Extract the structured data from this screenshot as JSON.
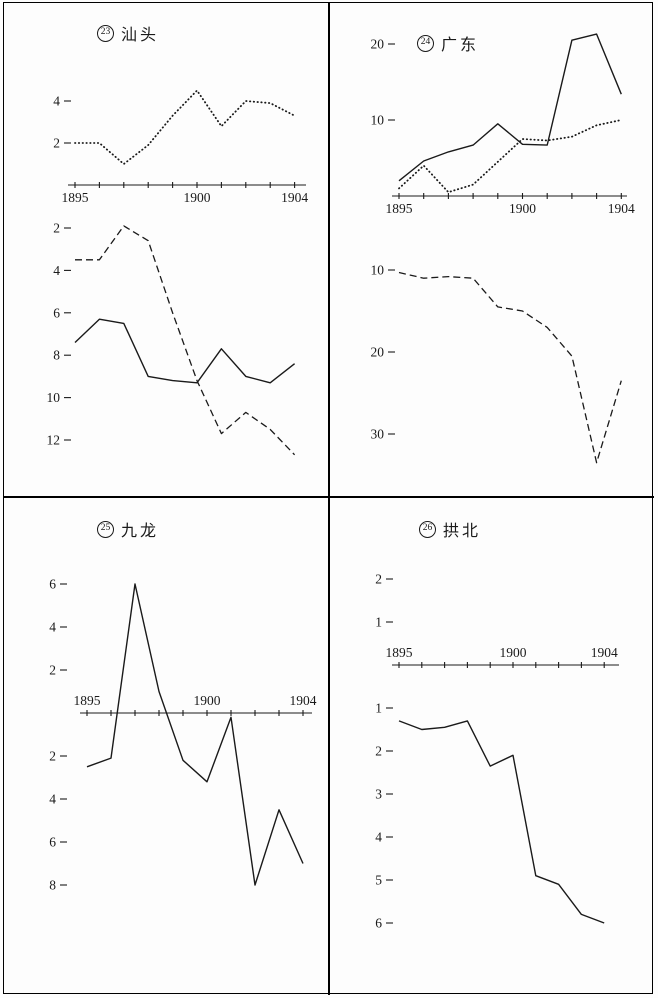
{
  "colors": {
    "ink": "#1a1a1a",
    "paper": "#fdfdfd"
  },
  "x_years": [
    1895,
    1896,
    1897,
    1898,
    1899,
    1900,
    1901,
    1902,
    1903,
    1904
  ],
  "chart_data": [
    {
      "type": "line",
      "panel_number": "23",
      "title": "汕头",
      "x": [
        1895,
        1896,
        1897,
        1898,
        1899,
        1900,
        1901,
        1902,
        1903,
        1904
      ],
      "x_tick_labels": [
        {
          "text": "1895",
          "year": 1895
        },
        {
          "text": "1900",
          "year": 1900
        },
        {
          "text": "1904",
          "year": 1904
        }
      ],
      "subcharts": [
        {
          "id": "shantou-upper",
          "y_direction": "up",
          "ylim": [
            0,
            5.5
          ],
          "axis_label_side": "below",
          "grid": false,
          "y_ticks": [
            {
              "text": "4",
              "value": 4
            },
            {
              "text": "2",
              "value": 2
            }
          ],
          "series": [
            {
              "name": "dotted-series",
              "style": "dotted",
              "values": [
                2,
                2,
                1,
                1.9,
                3.3,
                4.5,
                2.8,
                4,
                3.9,
                3.3
              ]
            }
          ]
        },
        {
          "id": "shantou-lower",
          "y_direction": "down",
          "ylim": [
            1.5,
            13
          ],
          "grid": false,
          "y_ticks": [
            {
              "text": "2",
              "value": 2
            },
            {
              "text": "4",
              "value": 4
            },
            {
              "text": "6",
              "value": 6
            },
            {
              "text": "8",
              "value": 8
            },
            {
              "text": "10",
              "value": 10
            },
            {
              "text": "12",
              "value": 12
            }
          ],
          "series": [
            {
              "name": "dashed-series",
              "style": "dashed",
              "values": [
                3.5,
                3.5,
                1.9,
                2.6,
                6,
                9.2,
                11.7,
                10.7,
                11.5,
                12.7
              ]
            },
            {
              "name": "solid-series",
              "style": "solid",
              "values": [
                7.4,
                6.3,
                6.5,
                9,
                9.2,
                9.3,
                7.7,
                9,
                9.3,
                8.4
              ]
            }
          ]
        }
      ]
    },
    {
      "type": "line",
      "panel_number": "24",
      "title": "广东",
      "x": [
        1895,
        1896,
        1897,
        1898,
        1899,
        1900,
        1901,
        1902,
        1903,
        1904
      ],
      "x_tick_labels": [
        {
          "text": "1895",
          "year": 1895
        },
        {
          "text": "1900",
          "year": 1900
        },
        {
          "text": "1904",
          "year": 1904
        }
      ],
      "subcharts": [
        {
          "id": "guangdong-upper",
          "y_direction": "up",
          "ylim": [
            0,
            22
          ],
          "axis_label_side": "below",
          "grid": false,
          "y_ticks": [
            {
              "text": "20",
              "value": 20
            },
            {
              "text": "10",
              "value": 10
            }
          ],
          "series": [
            {
              "name": "solid-series",
              "style": "solid",
              "values": [
                2,
                4.6,
                5.8,
                6.7,
                9.5,
                6.8,
                6.7,
                20.5,
                21.3,
                13.4
              ]
            },
            {
              "name": "dotted-series",
              "style": "dotted",
              "values": [
                1,
                4,
                0.5,
                1.5,
                4.5,
                7.5,
                7.3,
                7.8,
                9.3,
                10
              ]
            }
          ]
        },
        {
          "id": "guangdong-lower",
          "y_direction": "down",
          "ylim": [
            9,
            35
          ],
          "grid": false,
          "y_ticks": [
            {
              "text": "10",
              "value": 10
            },
            {
              "text": "20",
              "value": 20
            },
            {
              "text": "30",
              "value": 30
            }
          ],
          "series": [
            {
              "name": "dashed-series",
              "style": "dashed",
              "values": [
                10.3,
                11,
                10.8,
                11,
                14.5,
                15,
                17,
                20.5,
                33.5,
                23.5
              ]
            }
          ]
        }
      ]
    },
    {
      "type": "line",
      "panel_number": "25",
      "title": "九龙",
      "x": [
        1895,
        1896,
        1897,
        1898,
        1899,
        1900,
        1901,
        1902,
        1903,
        1904
      ],
      "x_tick_labels": [
        {
          "text": "1895",
          "year": 1895
        },
        {
          "text": "1900",
          "year": 1900
        },
        {
          "text": "1904",
          "year": 1904
        }
      ],
      "subcharts": [
        {
          "id": "kowloon-main",
          "y_direction": "up",
          "ylim": [
            -8.5,
            7
          ],
          "axis_label_side": "above",
          "grid": false,
          "y_ticks": [
            {
              "text": "6",
              "value": 6
            },
            {
              "text": "4",
              "value": 4
            },
            {
              "text": "2",
              "value": 2
            },
            {
              "text": "2",
              "value": -2
            },
            {
              "text": "4",
              "value": -4
            },
            {
              "text": "6",
              "value": -6
            },
            {
              "text": "8",
              "value": -8
            }
          ],
          "series": [
            {
              "name": "solid-series",
              "style": "solid",
              "values": [
                -2.5,
                -2.1,
                6,
                1,
                -2.2,
                -3.2,
                -0.2,
                -8,
                -4.5,
                -7
              ]
            }
          ]
        }
      ]
    },
    {
      "type": "line",
      "panel_number": "26",
      "title": "拱北",
      "x": [
        1895,
        1896,
        1897,
        1898,
        1899,
        1900,
        1901,
        1902,
        1903,
        1904
      ],
      "x_tick_labels": [
        {
          "text": "1895",
          "year": 1895
        },
        {
          "text": "1900",
          "year": 1900
        },
        {
          "text": "1904",
          "year": 1904
        }
      ],
      "subcharts": [
        {
          "id": "gongbei-main",
          "y_direction": "up",
          "ylim": [
            -6.3,
            2.3
          ],
          "axis_label_side": "above",
          "grid": false,
          "y_ticks": [
            {
              "text": "2",
              "value": 2
            },
            {
              "text": "1",
              "value": 1
            },
            {
              "text": "1",
              "value": -1
            },
            {
              "text": "2",
              "value": -2
            },
            {
              "text": "3",
              "value": -3
            },
            {
              "text": "4",
              "value": -4
            },
            {
              "text": "5",
              "value": -5
            },
            {
              "text": "6",
              "value": -6
            }
          ],
          "series": [
            {
              "name": "solid-series",
              "style": "solid",
              "values": [
                -1.3,
                -1.5,
                -1.45,
                -1.3,
                -2.35,
                -2.1,
                -4.9,
                -5.1,
                -5.8,
                -6
              ]
            }
          ]
        }
      ]
    }
  ]
}
